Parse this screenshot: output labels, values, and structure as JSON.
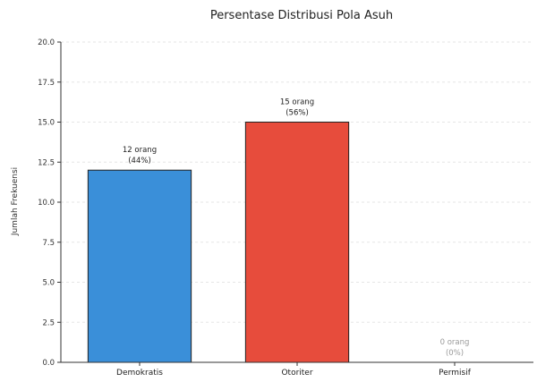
{
  "chart_data": {
    "type": "bar",
    "title": "Persentase Distribusi Pola Asuh",
    "xlabel": "",
    "ylabel": "Jumlah Frekuensi",
    "categories": [
      "Demokratis",
      "Otoriter",
      "Permisif"
    ],
    "values": [
      12,
      15,
      0
    ],
    "data_labels": [
      [
        "12 orang",
        "(44%)"
      ],
      [
        "15 orang",
        "(56%)"
      ],
      [
        "0 orang",
        "(0%)"
      ]
    ],
    "colors": [
      "#3a8fd9",
      "#e74c3c",
      "#bdbdbd"
    ],
    "label_colors": [
      "#222222",
      "#222222",
      "#9a9a9a"
    ],
    "ylim": [
      0,
      20
    ],
    "yticks": [
      "0.0",
      "2.5",
      "5.0",
      "7.5",
      "10.0",
      "12.5",
      "15.0",
      "17.5",
      "20.0"
    ],
    "ytick_values": [
      0,
      2.5,
      5,
      7.5,
      10,
      12.5,
      15,
      17.5,
      20
    ],
    "grid": true,
    "legend": "none"
  }
}
